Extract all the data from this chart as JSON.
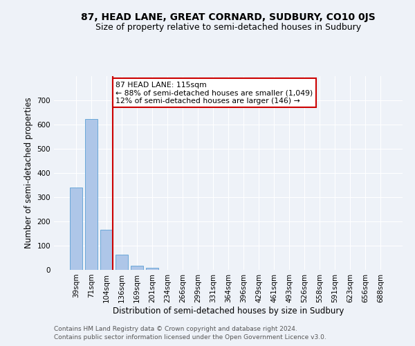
{
  "title": "87, HEAD LANE, GREAT CORNARD, SUDBURY, CO10 0JS",
  "subtitle": "Size of property relative to semi-detached houses in Sudbury",
  "xlabel": "Distribution of semi-detached houses by size in Sudbury",
  "ylabel": "Number of semi-detached properties",
  "categories": [
    "39sqm",
    "71sqm",
    "104sqm",
    "136sqm",
    "169sqm",
    "201sqm",
    "234sqm",
    "266sqm",
    "299sqm",
    "331sqm",
    "364sqm",
    "396sqm",
    "429sqm",
    "461sqm",
    "493sqm",
    "526sqm",
    "558sqm",
    "591sqm",
    "623sqm",
    "656sqm",
    "688sqm"
  ],
  "values": [
    340,
    622,
    165,
    62,
    18,
    8,
    0,
    0,
    0,
    0,
    0,
    0,
    0,
    0,
    0,
    0,
    0,
    0,
    0,
    0,
    0
  ],
  "bar_color": "#aec6e8",
  "bar_edgecolor": "#5a9fd4",
  "vline_color": "#cc0000",
  "annotation_title": "87 HEAD LANE: 115sqm",
  "annotation_line1": "← 88% of semi-detached houses are smaller (1,049)",
  "annotation_line2": "12% of semi-detached houses are larger (146) →",
  "annotation_box_color": "#ffffff",
  "annotation_box_edgecolor": "#cc0000",
  "ylim": [
    0,
    800
  ],
  "yticks": [
    0,
    100,
    200,
    300,
    400,
    500,
    600,
    700
  ],
  "footnote1": "Contains HM Land Registry data © Crown copyright and database right 2024.",
  "footnote2": "Contains public sector information licensed under the Open Government Licence v3.0.",
  "bg_color": "#eef2f8",
  "grid_color": "#ffffff",
  "title_fontsize": 10,
  "subtitle_fontsize": 9,
  "label_fontsize": 8.5,
  "tick_fontsize": 7.5,
  "footnote_fontsize": 6.5
}
